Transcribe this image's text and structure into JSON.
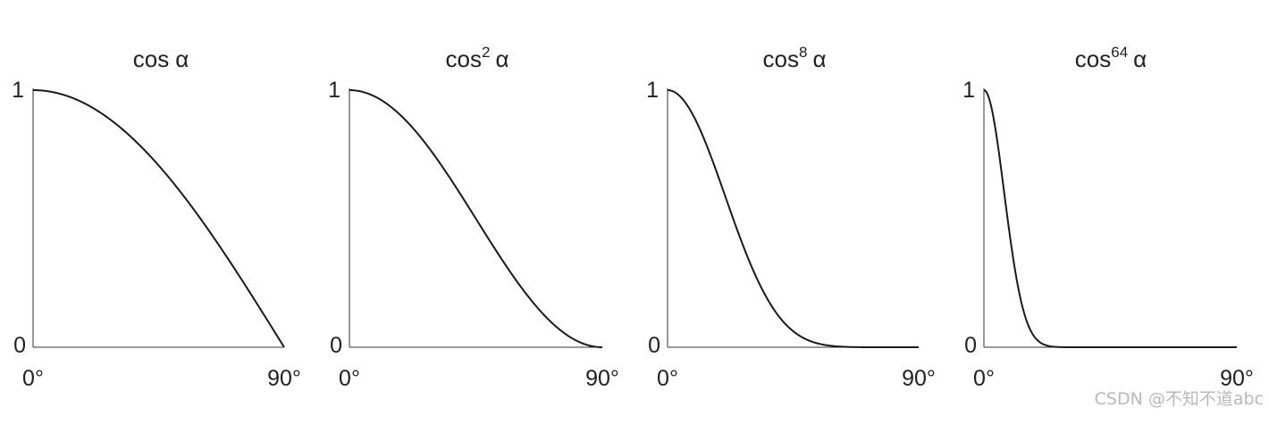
{
  "chart_data": [
    {
      "type": "line",
      "title_base": "cos",
      "title_exp": "",
      "title_var": "α",
      "exponent": 1,
      "x_min_label": "0°",
      "x_max_label": "90°",
      "y_min_label": "0",
      "y_max_label": "1",
      "xlim": [
        0,
        90
      ],
      "ylim": [
        0,
        1
      ]
    },
    {
      "type": "line",
      "title_base": "cos",
      "title_exp": "2",
      "title_var": "α",
      "exponent": 2,
      "x_min_label": "0°",
      "x_max_label": "90°",
      "y_min_label": "0",
      "y_max_label": "1",
      "xlim": [
        0,
        90
      ],
      "ylim": [
        0,
        1
      ]
    },
    {
      "type": "line",
      "title_base": "cos",
      "title_exp": "8",
      "title_var": "α",
      "exponent": 8,
      "x_min_label": "0°",
      "x_max_label": "90°",
      "y_min_label": "0",
      "y_max_label": "1",
      "xlim": [
        0,
        90
      ],
      "ylim": [
        0,
        1
      ]
    },
    {
      "type": "line",
      "title_base": "cos",
      "title_exp": "64",
      "title_var": "α",
      "exponent": 64,
      "x_min_label": "0°",
      "x_max_label": "90°",
      "y_min_label": "0",
      "y_max_label": "1",
      "xlim": [
        0,
        90
      ],
      "ylim": [
        0,
        1
      ]
    }
  ],
  "colors": {
    "line": "#1a1a1a",
    "axis": "#333333"
  },
  "watermark": "CSDN @不知不道abc"
}
